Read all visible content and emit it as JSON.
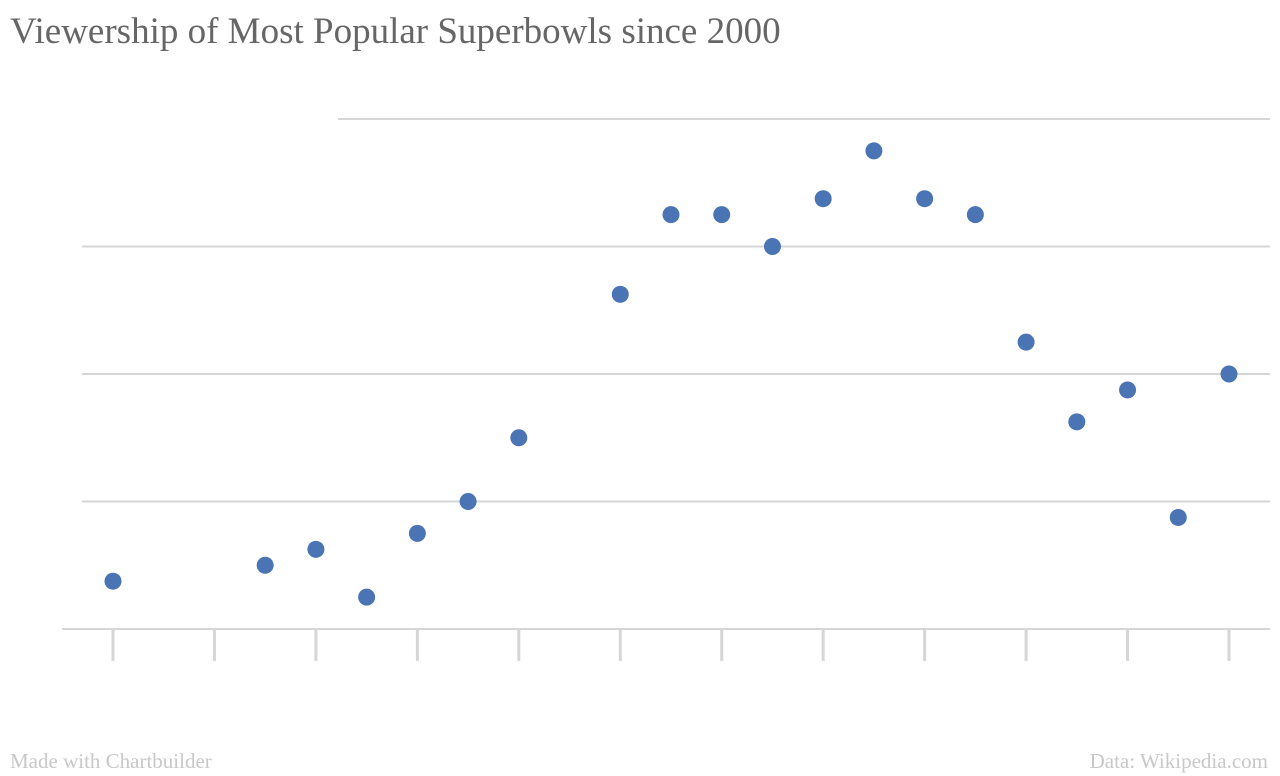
{
  "chart_data": {
    "type": "scatter",
    "title": "Viewership of Most Popular Superbowls since 2000",
    "xlabel": "",
    "ylabel": "",
    "x": [
      2000,
      2003,
      2004,
      2005,
      2006,
      2007,
      2008,
      2010,
      2011,
      2012,
      2013,
      2014,
      2015,
      2016,
      2017,
      2018,
      2019,
      2020,
      2021,
      2022
    ],
    "y": [
      1.5,
      2.0,
      2.5,
      1.0,
      3.0,
      4.0,
      6.0,
      10.5,
      13.0,
      13.0,
      12.0,
      13.5,
      15.0,
      13.5,
      13.0,
      9.0,
      6.5,
      7.5,
      3.5,
      8.0
    ],
    "xlim": [
      1999,
      2023
    ],
    "ylim": [
      0,
      16
    ],
    "y_gridlines": [
      0,
      4,
      8,
      12,
      16
    ],
    "x_ticks": [
      2000,
      2002,
      2004,
      2006,
      2008,
      2010,
      2012,
      2014,
      2016,
      2018,
      2020,
      2022
    ],
    "grid": true,
    "legend": "none",
    "marker_color": "#4a74b4",
    "grid_color": "#d6d6d6"
  },
  "footer": {
    "credit": "Made with Chartbuilder",
    "source": "Data: Wikipedia.com"
  }
}
